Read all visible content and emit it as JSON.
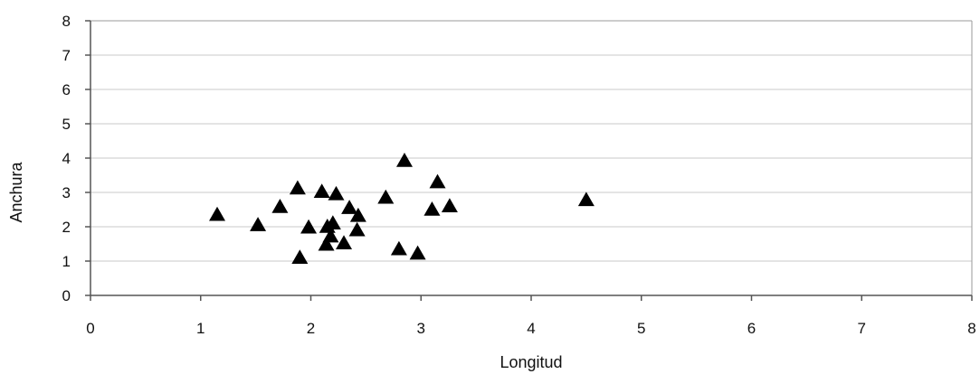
{
  "chart_data": {
    "type": "scatter",
    "xlabel": "Longitud",
    "ylabel": "Anchura",
    "xlim": [
      0,
      8
    ],
    "ylim": [
      0,
      8
    ],
    "x_ticks": [
      0,
      1,
      2,
      3,
      4,
      5,
      6,
      7,
      8
    ],
    "y_ticks": [
      0,
      1,
      2,
      3,
      4,
      5,
      6,
      7,
      8
    ],
    "grid": true,
    "marker": "triangle",
    "marker_color": "#000000",
    "series": [
      {
        "points": [
          {
            "x": 1.15,
            "y": 2.35
          },
          {
            "x": 1.52,
            "y": 2.05
          },
          {
            "x": 1.72,
            "y": 2.58
          },
          {
            "x": 1.88,
            "y": 3.12
          },
          {
            "x": 1.9,
            "y": 1.1
          },
          {
            "x": 1.98,
            "y": 1.98
          },
          {
            "x": 2.1,
            "y": 3.02
          },
          {
            "x": 2.14,
            "y": 1.48
          },
          {
            "x": 2.15,
            "y": 2.0
          },
          {
            "x": 2.18,
            "y": 1.72
          },
          {
            "x": 2.2,
            "y": 2.1
          },
          {
            "x": 2.23,
            "y": 2.95
          },
          {
            "x": 2.3,
            "y": 1.52
          },
          {
            "x": 2.35,
            "y": 2.55
          },
          {
            "x": 2.42,
            "y": 1.9
          },
          {
            "x": 2.43,
            "y": 2.32
          },
          {
            "x": 2.68,
            "y": 2.85
          },
          {
            "x": 2.8,
            "y": 1.35
          },
          {
            "x": 2.85,
            "y": 3.92
          },
          {
            "x": 2.97,
            "y": 1.22
          },
          {
            "x": 3.1,
            "y": 2.5
          },
          {
            "x": 3.15,
            "y": 3.3
          },
          {
            "x": 3.26,
            "y": 2.6
          },
          {
            "x": 4.5,
            "y": 2.78
          }
        ]
      }
    ]
  }
}
